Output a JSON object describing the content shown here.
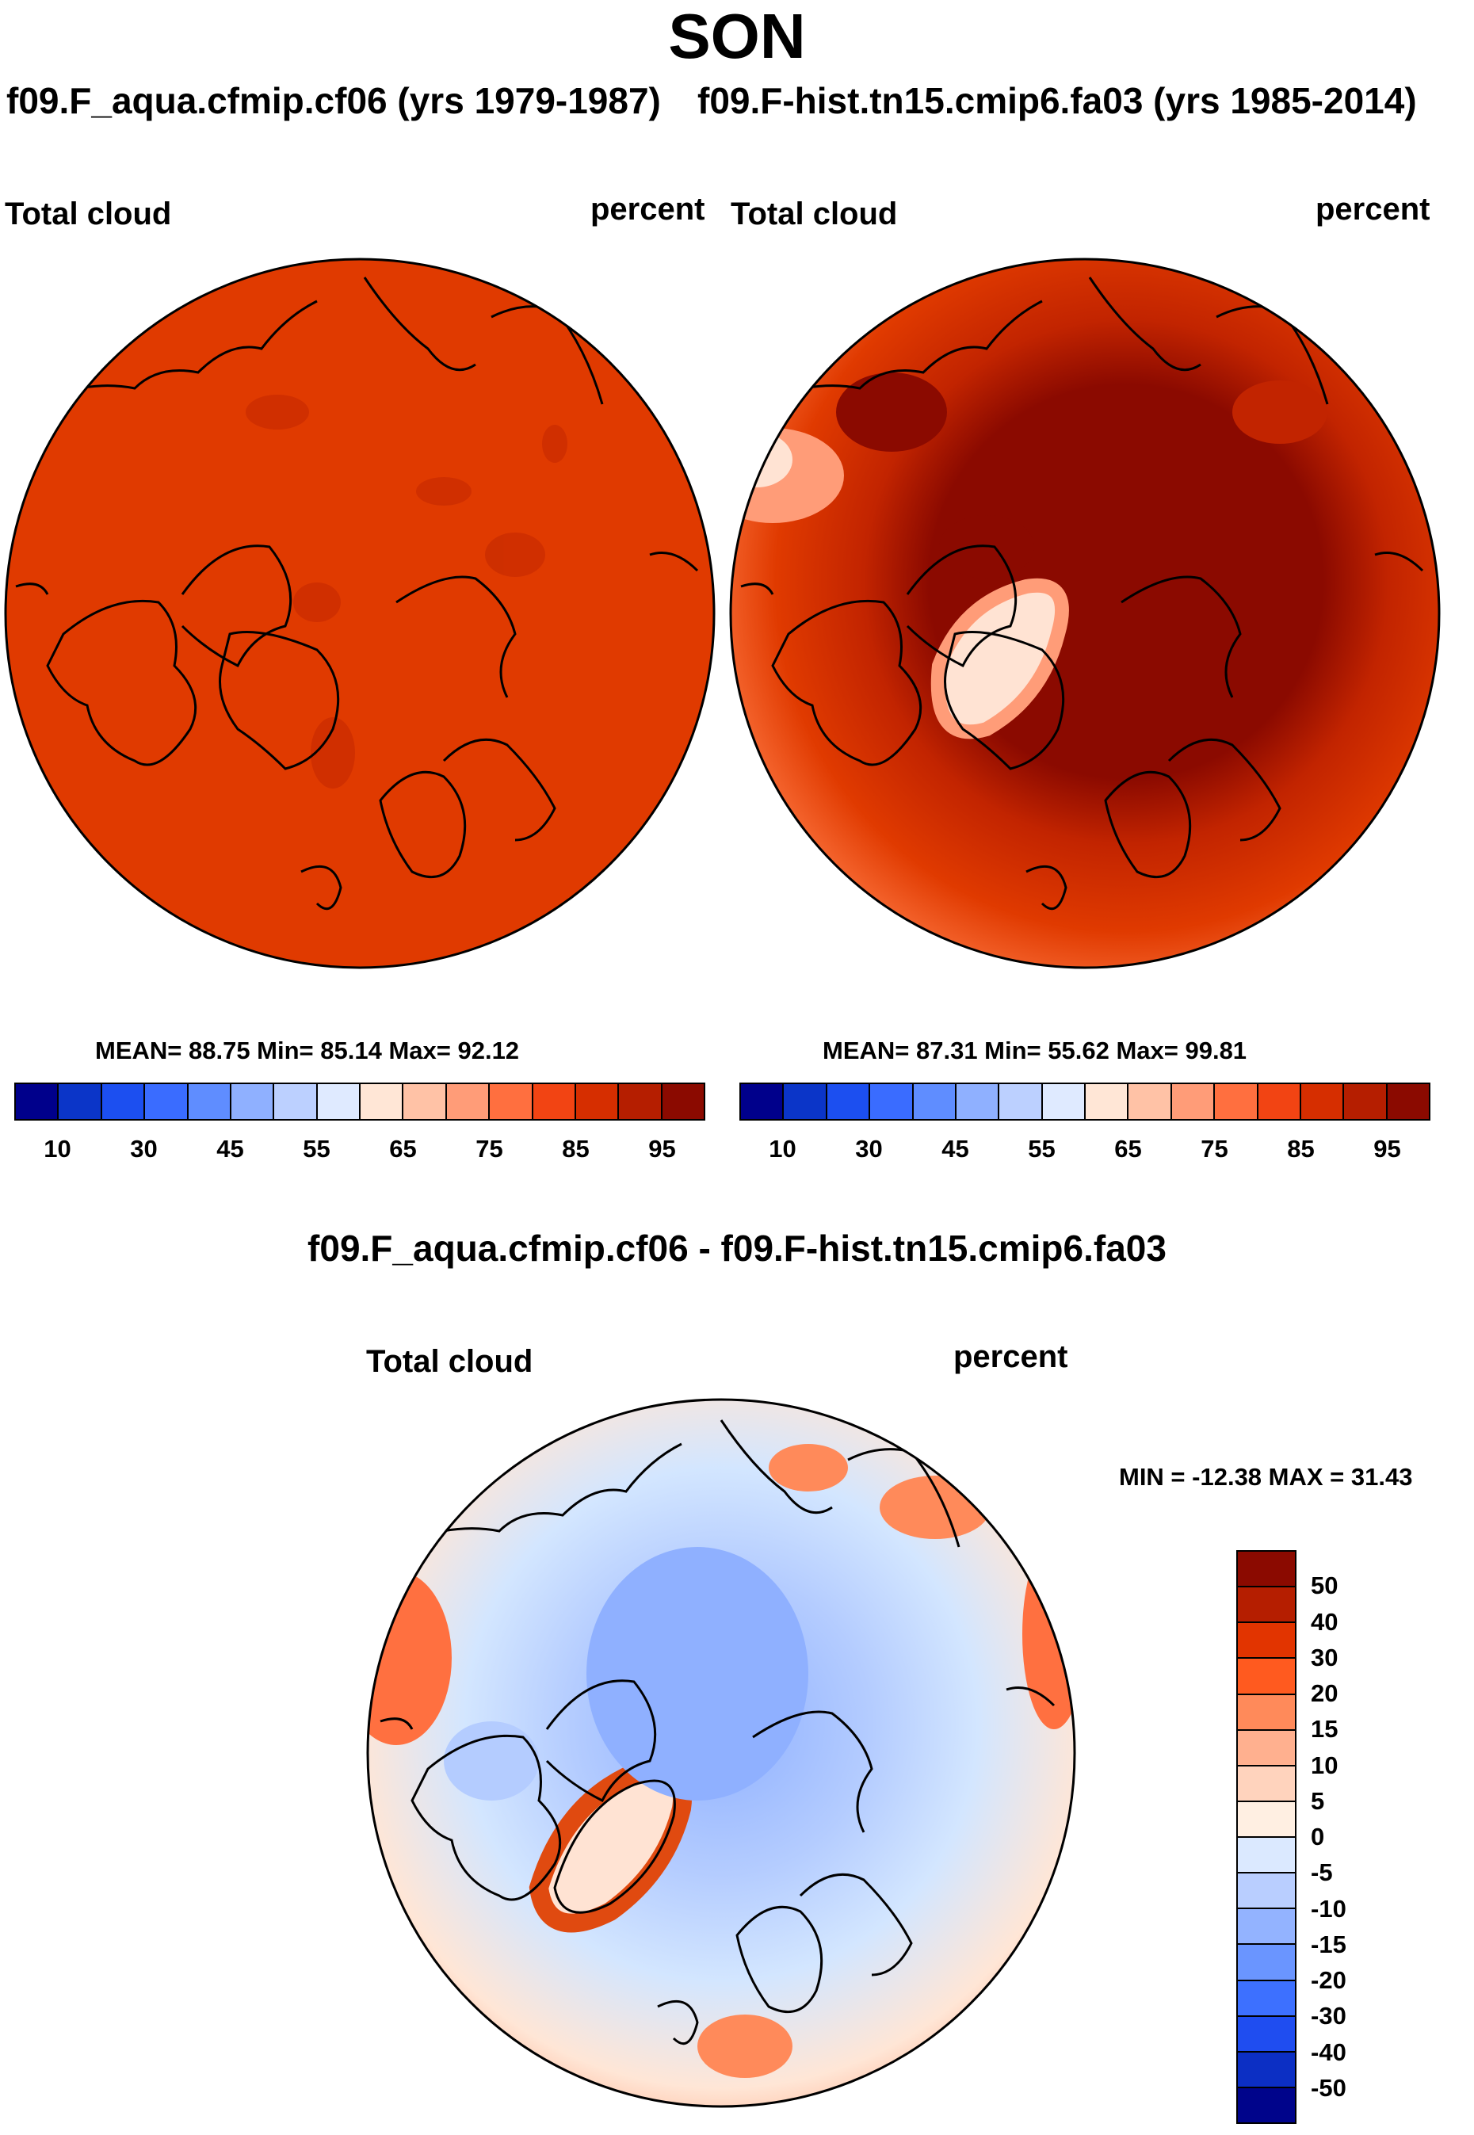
{
  "title": "SON",
  "panels": {
    "left": {
      "case_title": "f09.F_aqua.cfmip.cf06 (yrs 1979-1987)",
      "variable": "Total cloud",
      "units": "percent",
      "stats": "MEAN=  88.75  Min=  85.14  Max=  92.12"
    },
    "right": {
      "case_title": "f09.F-hist.tn15.cmip6.fa03 (yrs 1985-2014)",
      "variable": "Total cloud",
      "units": "percent",
      "stats": "MEAN=  87.31  Min=  55.62  Max=  99.81"
    },
    "diff": {
      "case_title": "f09.F_aqua.cfmip.cf06 - f09.F-hist.tn15.cmip6.fa03",
      "variable": "Total cloud",
      "units": "percent",
      "stats": "MIN = -12.38 MAX =  31.43"
    }
  },
  "colorbar_abs": {
    "colors": [
      "#00008b",
      "#0b35c8",
      "#1c4ff0",
      "#3a6cff",
      "#5f8dff",
      "#8fb0ff",
      "#bcd0ff",
      "#dfeaff",
      "#ffe6d6",
      "#ffc2a6",
      "#ff9c78",
      "#ff6f3f",
      "#f24413",
      "#d62e00",
      "#b51e00",
      "#8b0a00"
    ],
    "labels": [
      "10",
      "30",
      "45",
      "55",
      "65",
      "75",
      "85",
      "95"
    ]
  },
  "colorbar_diff": {
    "colors": [
      "#8b0a00",
      "#b51e00",
      "#e23400",
      "#ff5a1f",
      "#ff8a5a",
      "#ffb08f",
      "#ffd3bd",
      "#ffefe2",
      "#dbe9ff",
      "#b9ceff",
      "#93b3ff",
      "#6a95ff",
      "#3d70ff",
      "#1f4df0",
      "#0c2fc4",
      "#00048b"
    ],
    "labels": [
      "50",
      "40",
      "30",
      "20",
      "15",
      "10",
      "5",
      "0",
      "-5",
      "-10",
      "-15",
      "-20",
      "-30",
      "-40",
      "-50"
    ]
  },
  "fills": {
    "left_base": "#e03a00",
    "left_dark": "#cc2e00",
    "right_base": "#e03a00",
    "right_dark": "#8b0a00",
    "right_mid": "#c22400",
    "right_light": "#ff7a45",
    "right_pale": "#ffe3d3",
    "diff_base": "#d3e6ff",
    "diff_blue": "#8fb0ff",
    "diff_mid": "#b4ccff",
    "diff_warm": "#ffd6bf",
    "diff_orange": "#ff7040",
    "diff_red": "#e04a10"
  }
}
